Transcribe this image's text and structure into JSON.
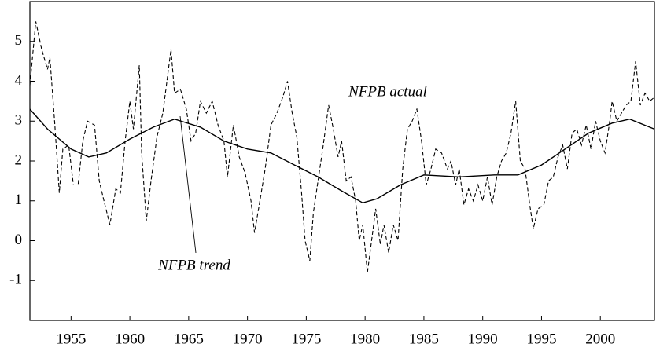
{
  "chart_data": {
    "type": "line",
    "xlim": [
      1951.5,
      2004.6
    ],
    "xticks": [
      1955,
      1960,
      1965,
      1970,
      1975,
      1980,
      1985,
      1990,
      1995,
      2000
    ],
    "ylim": [
      -2,
      6
    ],
    "yticks": [
      -1,
      0,
      1,
      2,
      3,
      4,
      5
    ],
    "series": [
      {
        "name": "NFPB actual",
        "color": "#000000",
        "dash": true,
        "x": [
          1951.5,
          1952.0,
          1952.5,
          1953.0,
          1953.2,
          1953.6,
          1954.0,
          1954.3,
          1954.8,
          1955.2,
          1955.6,
          1956.0,
          1956.4,
          1957.0,
          1957.4,
          1957.8,
          1958.3,
          1958.8,
          1959.2,
          1959.6,
          1960.0,
          1960.3,
          1960.8,
          1961.0,
          1961.4,
          1961.8,
          1962.3,
          1962.8,
          1963.5,
          1963.8,
          1964.3,
          1964.8,
          1965.2,
          1965.6,
          1966.0,
          1966.5,
          1967.0,
          1967.5,
          1968.0,
          1968.3,
          1968.8,
          1969.3,
          1969.8,
          1970.3,
          1970.6,
          1971.0,
          1971.5,
          1972.0,
          1972.5,
          1973.0,
          1973.4,
          1973.8,
          1974.2,
          1974.6,
          1974.9,
          1975.3,
          1975.6,
          1976.0,
          1976.4,
          1976.9,
          1977.3,
          1977.7,
          1978.0,
          1978.4,
          1978.8,
          1979.2,
          1979.5,
          1979.8,
          1980.2,
          1980.6,
          1980.9,
          1981.3,
          1981.6,
          1982.0,
          1982.4,
          1982.8,
          1983.2,
          1983.6,
          1984.0,
          1984.4,
          1984.8,
          1985.2,
          1985.6,
          1986.0,
          1986.5,
          1987.0,
          1987.3,
          1987.7,
          1988.0,
          1988.4,
          1988.8,
          1989.2,
          1989.6,
          1990.0,
          1990.4,
          1990.8,
          1991.2,
          1991.6,
          1992.0,
          1992.4,
          1992.8,
          1993.2,
          1993.6,
          1994.0,
          1994.3,
          1994.7,
          1995.2,
          1995.6,
          1996.0,
          1996.4,
          1996.8,
          1997.2,
          1997.6,
          1998.0,
          1998.4,
          1998.8,
          1999.2,
          1999.6,
          2000.0,
          2000.4,
          2000.8,
          2001.0,
          2001.4,
          2001.8,
          2002.2,
          2002.6,
          2003.0,
          2003.4,
          2003.8,
          2004.2,
          2004.6
        ],
        "values": [
          3.9,
          5.5,
          4.8,
          4.3,
          4.6,
          3.0,
          1.2,
          2.3,
          2.4,
          1.4,
          1.4,
          2.5,
          3.0,
          2.9,
          1.5,
          1.0,
          0.4,
          1.3,
          1.2,
          2.5,
          3.5,
          2.8,
          4.4,
          2.2,
          0.5,
          1.5,
          2.6,
          3.2,
          4.8,
          3.7,
          3.8,
          3.3,
          2.5,
          2.7,
          3.5,
          3.2,
          3.5,
          2.9,
          2.5,
          1.6,
          2.9,
          2.1,
          1.7,
          1.0,
          0.2,
          0.9,
          1.8,
          2.9,
          3.2,
          3.6,
          4.0,
          3.2,
          2.6,
          1.2,
          0.0,
          -0.5,
          0.7,
          1.5,
          2.3,
          3.4,
          2.8,
          2.1,
          2.5,
          1.5,
          1.6,
          1.0,
          0.0,
          0.4,
          -0.8,
          0.1,
          0.8,
          -0.1,
          0.4,
          -0.3,
          0.4,
          0.0,
          1.8,
          2.8,
          3.0,
          3.3,
          2.5,
          1.4,
          1.8,
          2.3,
          2.2,
          1.8,
          2.0,
          1.4,
          1.8,
          0.9,
          1.3,
          1.0,
          1.4,
          1.0,
          1.6,
          0.9,
          1.6,
          2.0,
          2.2,
          2.7,
          3.5,
          2.0,
          1.8,
          0.9,
          0.3,
          0.8,
          0.9,
          1.5,
          1.6,
          2.1,
          2.4,
          1.8,
          2.7,
          2.8,
          2.4,
          2.9,
          2.3,
          3.0,
          2.5,
          2.2,
          3.0,
          3.5,
          3.0,
          3.2,
          3.4,
          3.5,
          4.5,
          3.4,
          3.7,
          3.5,
          3.6
        ]
      },
      {
        "name": "NFPB trend",
        "color": "#000000",
        "dash": false,
        "x": [
          1951.5,
          1953,
          1955,
          1956.5,
          1958,
          1960,
          1962,
          1963.8,
          1966,
          1968,
          1970,
          1972,
          1974,
          1976,
          1978,
          1979.8,
          1981,
          1983,
          1985,
          1988,
          1991,
          1993,
          1995,
          1997,
          1999,
          2001,
          2002.5,
          2004.6
        ],
        "values": [
          3.3,
          2.8,
          2.3,
          2.1,
          2.2,
          2.55,
          2.85,
          3.05,
          2.85,
          2.5,
          2.3,
          2.2,
          1.9,
          1.6,
          1.25,
          0.95,
          1.05,
          1.4,
          1.65,
          1.6,
          1.65,
          1.65,
          1.9,
          2.3,
          2.7,
          2.95,
          3.05,
          2.8
        ]
      }
    ]
  }
}
